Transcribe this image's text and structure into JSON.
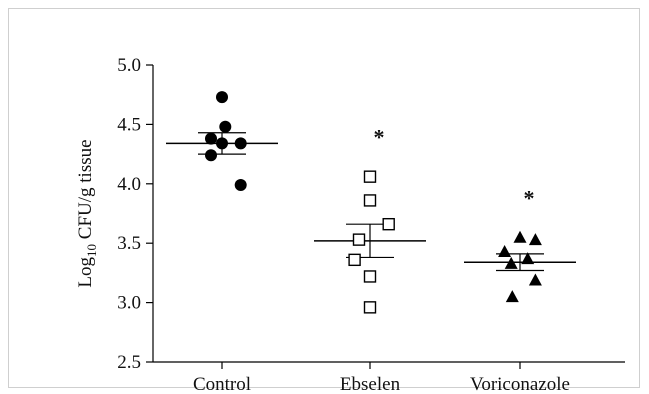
{
  "chart_data": {
    "type": "scatter",
    "title": "",
    "xlabel": "",
    "ylabel": {
      "prefix": "Log",
      "subscript": "10",
      "suffix": " CFU/g tissue"
    },
    "ylim": [
      2.5,
      5.0
    ],
    "yticks": [
      "2.5",
      "3.0",
      "3.5",
      "4.0",
      "4.5",
      "5.0"
    ],
    "categories": [
      "Control",
      "Ebselen",
      "Voriconazole"
    ],
    "grid": false,
    "legend": "none",
    "groups": [
      {
        "category": "Control",
        "marker": "filled-circle",
        "points": [
          4.73,
          4.48,
          4.38,
          4.34,
          4.34,
          4.24,
          3.99
        ],
        "mean": 4.34,
        "sem": [
          4.25,
          4.43
        ],
        "significance": ""
      },
      {
        "category": "Ebselen",
        "marker": "open-square",
        "points": [
          4.06,
          3.86,
          3.66,
          3.53,
          3.36,
          3.22,
          2.96
        ],
        "mean": 3.52,
        "sem": [
          3.38,
          3.66
        ],
        "significance": "*"
      },
      {
        "category": "Voriconazole",
        "marker": "filled-triangle",
        "points": [
          3.55,
          3.53,
          3.43,
          3.37,
          3.33,
          3.19,
          3.05
        ],
        "mean": 3.34,
        "sem": [
          3.27,
          3.41
        ],
        "significance": "*"
      }
    ]
  }
}
